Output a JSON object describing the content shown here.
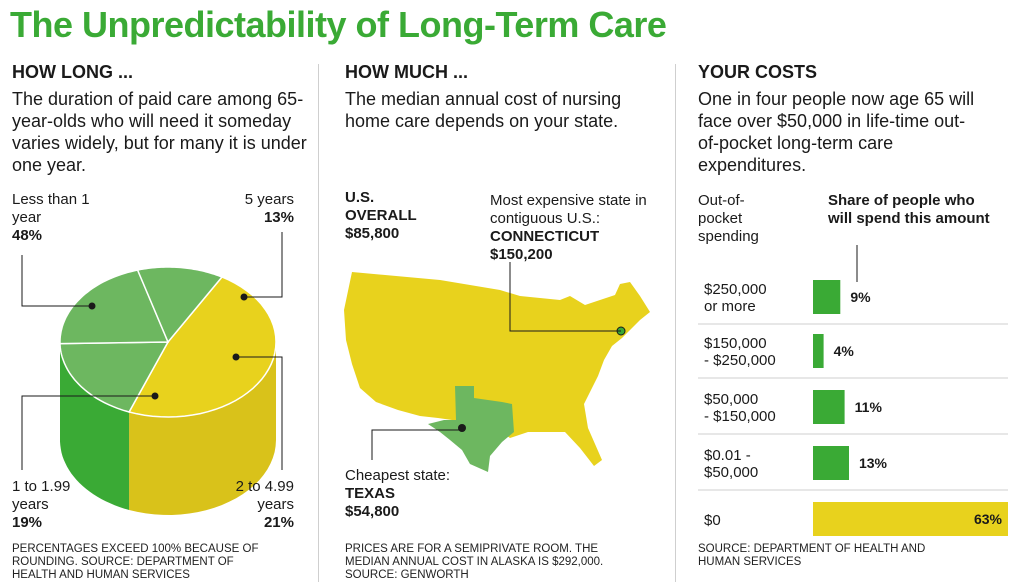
{
  "title": "The Unpredictability of Long-Term Care",
  "colors": {
    "yellow": "#e8d21d",
    "green_light": "#6db760",
    "green": "#3aaa35",
    "title_green": "#3aaa35"
  },
  "how_long": {
    "heading": "HOW LONG ...",
    "description": "The duration of paid care among 65-year-olds who will need it someday varies widely, but for many it is  under one year.",
    "labels": {
      "lt1": {
        "name": "Less than 1 year",
        "pct": "48%"
      },
      "y5": {
        "name": "5 years",
        "pct": "13%"
      },
      "y1": {
        "name": "1 to 1.99 years",
        "pct": "19%"
      },
      "y2": {
        "name": "2 to 4.99 years",
        "pct": "21%"
      }
    },
    "source": "PERCENTAGES EXCEED 100% BECAUSE OF ROUNDING. SOURCE: DEPARTMENT OF HEALTH AND HUMAN SERVICES"
  },
  "how_much": {
    "heading": "HOW MUCH ...",
    "description": "The median annual cost of nursing home care depends on your state.",
    "overall_label": "U.S. OVERALL",
    "overall_value": "$85,800",
    "expensive_label": "Most expensive state in contiguous U.S.:",
    "expensive_state": "CONNECTICUT",
    "expensive_value": "$150,200",
    "cheapest_label": "Cheapest state:",
    "cheapest_state": "TEXAS",
    "cheapest_value": "$54,800",
    "source": "PRICES ARE FOR A SEMIPRIVATE ROOM. THE MEDIAN ANNUAL COST IN ALASKA IS $292,000. SOURCE: GENWORTH"
  },
  "your_costs": {
    "heading": "YOUR COSTS",
    "description": "One in four people now age 65 will face over $50,000 in life-time out-of-pocket long-term care expenditures.",
    "col1_header": "Out-of-pocket spending",
    "col2_header": "Share of people who will spend this amount",
    "source": "SOURCE: DEPARTMENT OF HEALTH AND HUMAN SERVICES"
  },
  "chart_data": [
    {
      "type": "pie",
      "categories": [
        "Less than 1 year",
        "1 to 1.99 years",
        "2 to 4.99 years",
        "5 years"
      ],
      "values": [
        48,
        19,
        21,
        13
      ],
      "unit": "%"
    },
    {
      "type": "bar",
      "categories": [
        "$250,000 or more",
        "$150,000 - $250,000",
        "$50,000 - $150,000",
        "$0.01 - $50,000",
        "$0"
      ],
      "values": [
        9,
        4,
        11,
        13,
        63
      ],
      "labels": [
        "9%",
        "4%",
        "11%",
        "13%",
        "63%"
      ],
      "unit": "%"
    }
  ]
}
